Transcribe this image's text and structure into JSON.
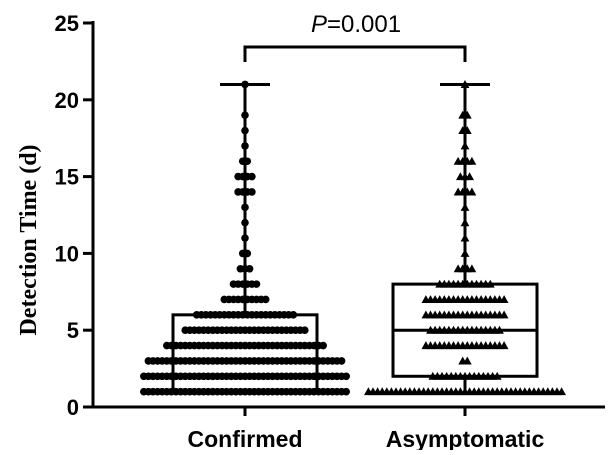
{
  "chart_data": {
    "type": "box",
    "ylabel": "Detection Time (d)",
    "ylim": [
      0,
      25
    ],
    "yticks": [
      "0",
      "5",
      "10",
      "15",
      "20",
      "25"
    ],
    "categories": [
      "Confirmed",
      "Asymptomatic"
    ],
    "annotation": {
      "p_prefix": "P",
      "p_value": "=0.001"
    },
    "groups": [
      {
        "name": "Confirmed",
        "marker": "circle",
        "min": 1,
        "q1": 1,
        "median": 3,
        "q3": 6,
        "max": 21,
        "points": [
          {
            "y": 1,
            "n": 45
          },
          {
            "y": 2,
            "n": 45
          },
          {
            "y": 3,
            "n": 43
          },
          {
            "y": 4,
            "n": 35
          },
          {
            "y": 5,
            "n": 27
          },
          {
            "y": 6,
            "n": 22
          },
          {
            "y": 7,
            "n": 10
          },
          {
            "y": 8,
            "n": 6
          },
          {
            "y": 9,
            "n": 3
          },
          {
            "y": 10,
            "n": 2
          },
          {
            "y": 11,
            "n": 1
          },
          {
            "y": 12,
            "n": 1
          },
          {
            "y": 13,
            "n": 1
          },
          {
            "y": 14,
            "n": 4
          },
          {
            "y": 15,
            "n": 4
          },
          {
            "y": 16,
            "n": 2
          },
          {
            "y": 17,
            "n": 1
          },
          {
            "y": 18,
            "n": 1
          },
          {
            "y": 19,
            "n": 1
          },
          {
            "y": 21,
            "n": 1
          }
        ]
      },
      {
        "name": "Asymptomatic",
        "marker": "triangle",
        "min": 1,
        "q1": 2,
        "median": 5,
        "q3": 8,
        "max": 21,
        "points": [
          {
            "y": 1,
            "n": 43
          },
          {
            "y": 2,
            "n": 15
          },
          {
            "y": 3,
            "n": 2
          },
          {
            "y": 4,
            "n": 18
          },
          {
            "y": 5,
            "n": 16
          },
          {
            "y": 6,
            "n": 18
          },
          {
            "y": 7,
            "n": 18
          },
          {
            "y": 8,
            "n": 12
          },
          {
            "y": 9,
            "n": 4
          },
          {
            "y": 10,
            "n": 1
          },
          {
            "y": 11,
            "n": 1
          },
          {
            "y": 12,
            "n": 1
          },
          {
            "y": 13,
            "n": 1
          },
          {
            "y": 14,
            "n": 4
          },
          {
            "y": 15,
            "n": 3
          },
          {
            "y": 16,
            "n": 4
          },
          {
            "y": 17,
            "n": 1
          },
          {
            "y": 18,
            "n": 2
          },
          {
            "y": 19,
            "n": 2
          },
          {
            "y": 21,
            "n": 1
          }
        ]
      }
    ]
  }
}
